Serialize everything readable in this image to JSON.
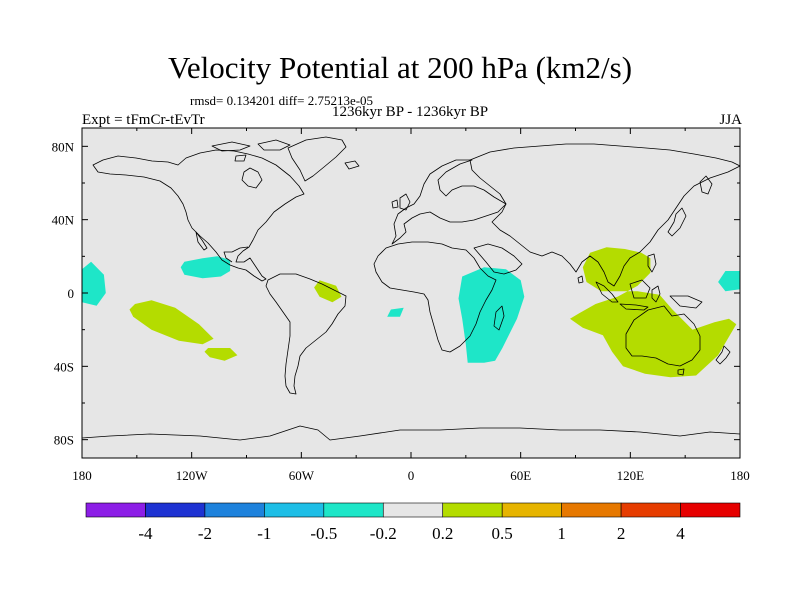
{
  "chart_data": {
    "type": "heatmap",
    "title": "Velocity Potential at 200 hPa (km2/s)",
    "stats": "rmsd= 0.134201 diff= 2.75213e-05",
    "period": "1236kyr BP - 1236kyr BP",
    "experiment": "Expt = tFmCr-tEvTr",
    "season": "JJA",
    "projection": "cylindrical equidistant, longitude -180 to 180, latitude -90 to 90",
    "xlim": [
      -180,
      180
    ],
    "ylim": [
      -90,
      90
    ],
    "x_ticks": [
      {
        "value": -180,
        "label": "180"
      },
      {
        "value": -120,
        "label": "120W"
      },
      {
        "value": -60,
        "label": "60W"
      },
      {
        "value": 0,
        "label": "0"
      },
      {
        "value": 60,
        "label": "60E"
      },
      {
        "value": 120,
        "label": "120E"
      },
      {
        "value": 180,
        "label": "180"
      }
    ],
    "y_ticks": [
      {
        "value": 80,
        "label": "80N"
      },
      {
        "value": 40,
        "label": "40N"
      },
      {
        "value": 0,
        "label": "0"
      },
      {
        "value": -40,
        "label": "40S"
      },
      {
        "value": -80,
        "label": "80S"
      }
    ],
    "colorbar": {
      "levels": [
        "-4",
        "-2",
        "-1",
        "-0.5",
        "-0.2",
        "0.2",
        "0.5",
        "1",
        "2",
        "4"
      ],
      "colors": [
        "#8c1ee6",
        "#1e32d2",
        "#1e82dc",
        "#1ebee6",
        "#1ee6c8",
        "#e6e6e6",
        "#b4dc00",
        "#e6b400",
        "#e67800",
        "#e63c00",
        "#e60000"
      ]
    },
    "anomaly_regions": [
      {
        "name": "central-pacific-east",
        "level": "-0.5 to -0.2",
        "color": "#1ee6c8",
        "polygon": [
          [
            -180,
            13
          ],
          [
            -175,
            17
          ],
          [
            -168,
            10
          ],
          [
            -167,
            0
          ],
          [
            -172,
            -7
          ],
          [
            -180,
            -5
          ]
        ]
      },
      {
        "name": "central-pacific-west",
        "level": "-0.5 to -0.2",
        "color": "#1ee6c8",
        "polygon": [
          [
            180,
            12
          ],
          [
            172,
            12
          ],
          [
            168,
            6
          ],
          [
            172,
            1
          ],
          [
            180,
            2
          ]
        ]
      },
      {
        "name": "mexico-pacific",
        "level": "-0.5 to -0.2",
        "color": "#1ee6c8",
        "polygon": [
          [
            -124,
            17
          ],
          [
            -114,
            19
          ],
          [
            -106,
            20
          ],
          [
            -99,
            18
          ],
          [
            -99,
            12
          ],
          [
            -104,
            9
          ],
          [
            -114,
            8
          ],
          [
            -124,
            10
          ],
          [
            -126,
            14
          ]
        ]
      },
      {
        "name": "west-africa-atlantic",
        "level": "-0.5 to -0.2",
        "color": "#1ee6c8",
        "polygon": [
          [
            -11,
            -9
          ],
          [
            -4,
            -8
          ],
          [
            -6,
            -13
          ],
          [
            -13,
            -13
          ]
        ]
      },
      {
        "name": "southern-africa-indian",
        "level": "-0.5 to -0.2",
        "color": "#1ee6c8",
        "polygon": [
          [
            28,
            9
          ],
          [
            40,
            14
          ],
          [
            52,
            13
          ],
          [
            60,
            7
          ],
          [
            62,
            -2
          ],
          [
            58,
            -14
          ],
          [
            50,
            -30
          ],
          [
            46,
            -37
          ],
          [
            40,
            -38
          ],
          [
            31,
            -38
          ],
          [
            30,
            -28
          ],
          [
            28,
            -14
          ],
          [
            26,
            -3
          ]
        ]
      },
      {
        "name": "south-pacific",
        "level": "0.2 to 0.5",
        "color": "#b4dc00",
        "polygon": [
          [
            -151,
            -6
          ],
          [
            -142,
            -4
          ],
          [
            -129,
            -8
          ],
          [
            -116,
            -17
          ],
          [
            -108,
            -25
          ],
          [
            -114,
            -28
          ],
          [
            -127,
            -26
          ],
          [
            -142,
            -20
          ],
          [
            -152,
            -13
          ],
          [
            -154,
            -9
          ]
        ]
      },
      {
        "name": "southeast-pacific",
        "level": "0.2 to 0.5",
        "color": "#b4dc00",
        "polygon": [
          [
            -111,
            -30
          ],
          [
            -99,
            -30
          ],
          [
            -95,
            -34
          ],
          [
            -102,
            -37
          ],
          [
            -110,
            -35
          ],
          [
            -113,
            -32
          ]
        ]
      },
      {
        "name": "northeast-brazil",
        "level": "0.2 to 0.5",
        "color": "#b4dc00",
        "polygon": [
          [
            -50,
            7
          ],
          [
            -41,
            4
          ],
          [
            -38,
            -2
          ],
          [
            -43,
            -5
          ],
          [
            -50,
            -2
          ],
          [
            -53,
            3
          ]
        ]
      },
      {
        "name": "maritime-continent-australia",
        "level": "0.2 to 0.5",
        "color": "#b4dc00",
        "polygon": [
          [
            94,
            14
          ],
          [
            98,
            22
          ],
          [
            107,
            25
          ],
          [
            117,
            24
          ],
          [
            126,
            22
          ],
          [
            131,
            19
          ],
          [
            131,
            11
          ],
          [
            124,
            4
          ],
          [
            113,
            -2
          ],
          [
            101,
            -6
          ],
          [
            92,
            -11
          ],
          [
            87,
            -14
          ],
          [
            94,
            -19
          ],
          [
            105,
            -23
          ],
          [
            110,
            -32
          ],
          [
            116,
            -40
          ],
          [
            128,
            -44
          ],
          [
            142,
            -46
          ],
          [
            156,
            -45
          ],
          [
            168,
            -34
          ],
          [
            178,
            -17
          ],
          [
            174,
            -14
          ],
          [
            166,
            -16
          ],
          [
            154,
            -20
          ],
          [
            143,
            -9
          ],
          [
            136,
            -1
          ],
          [
            124,
            1
          ],
          [
            104,
            1
          ],
          [
            96,
            6
          ]
        ]
      }
    ]
  }
}
